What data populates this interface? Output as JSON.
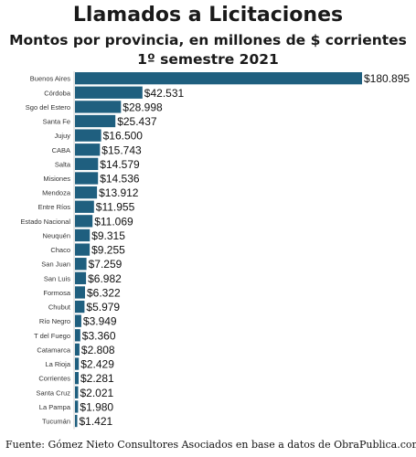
{
  "chart_data": {
    "type": "bar",
    "orientation": "horizontal",
    "title": "Llamados a Licitaciones",
    "subtitle": "Montos por provincia, en millones de $ corrientes",
    "subtitle2": "1º semestre 2021",
    "categories": [
      "Buenos Aires",
      "Córdoba",
      "Sgo del Estero",
      "Santa Fe",
      "Jujuy",
      "CABA",
      "Salta",
      "Misiones",
      "Mendoza",
      "Entre Ríos",
      "Estado Nacional",
      "Neuquén",
      "Chaco",
      "San Juan",
      "San Luis",
      "Formosa",
      "Chubut",
      "Río Negro",
      "T del Fuego",
      "Catamarca",
      "La Rioja",
      "Corrientes",
      "Santa Cruz",
      "La Pampa",
      "Tucumán"
    ],
    "values": [
      180895,
      42531,
      28998,
      25437,
      16500,
      15743,
      14579,
      14536,
      13912,
      11955,
      11069,
      9315,
      9255,
      7259,
      6982,
      6322,
      5979,
      3949,
      3360,
      2808,
      2429,
      2281,
      2021,
      1980,
      1421
    ],
    "value_labels": [
      "$180.895",
      "$42.531",
      "$28.998",
      "$25.437",
      "$16.500",
      "$15.743",
      "$14.579",
      "$14.536",
      "$13.912",
      "$11.955",
      "$11.069",
      "$9.315",
      "$9.255",
      "$7.259",
      "$6.982",
      "$6.322",
      "$5.979",
      "$3.949",
      "$3.360",
      "$2.808",
      "$2.429",
      "$2.281",
      "$2.021",
      "$1.980",
      "$1.421"
    ],
    "bar_color": "#1f5f7f",
    "grid": false
  },
  "footer": "Fuente: Gómez Nieto Consultores Asociados en base a datos de ObraPublica.com"
}
